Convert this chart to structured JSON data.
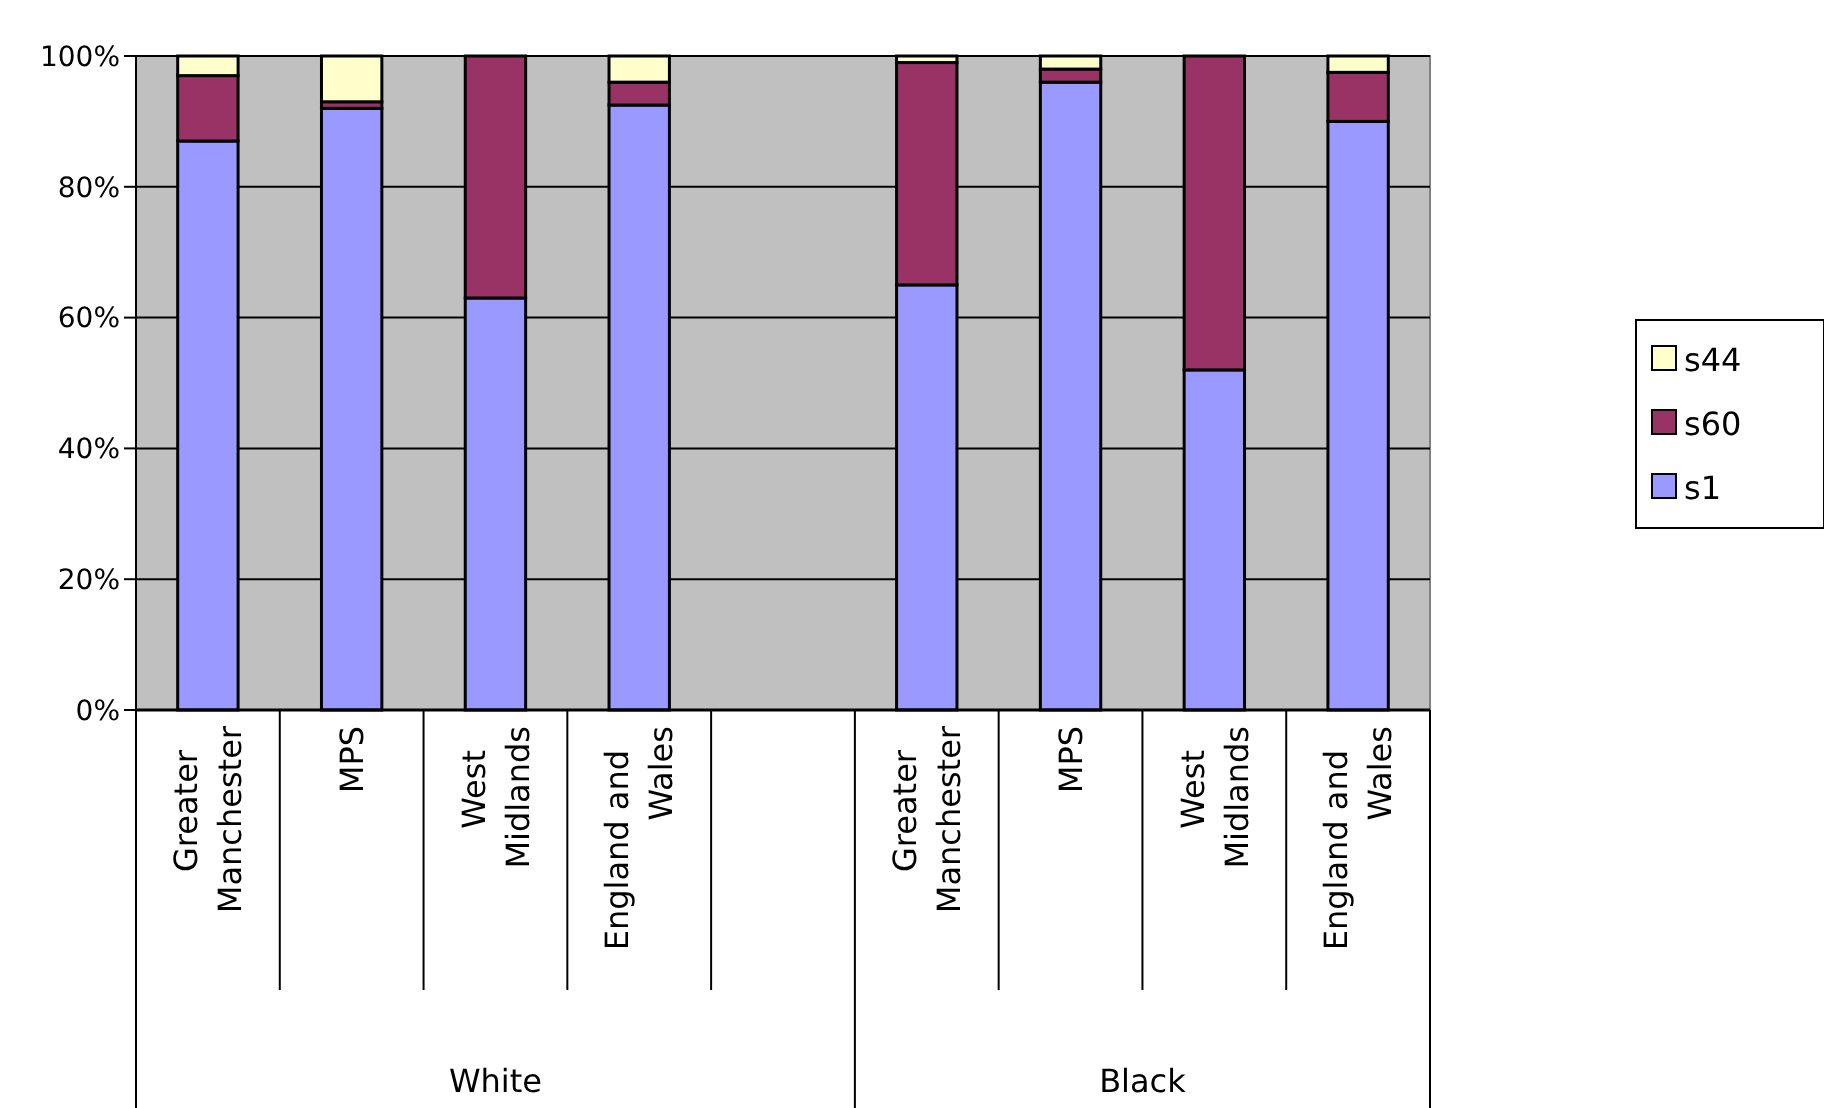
{
  "chart_data": {
    "type": "bar",
    "stacked": true,
    "categories": [
      "Greater Manchester",
      "MPS",
      "West Midlands",
      "England and Wales",
      null,
      "Greater Manchester",
      "MPS",
      "West Midlands",
      "England and Wales"
    ],
    "series": [
      {
        "name": "s1",
        "color": "#9999ff",
        "values": [
          87,
          92,
          63,
          92.5,
          null,
          65,
          96,
          52,
          90
        ]
      },
      {
        "name": "s60",
        "color": "#993366",
        "values": [
          10,
          1,
          37,
          3.5,
          null,
          34,
          2,
          48,
          7.5
        ]
      },
      {
        "name": "s44",
        "color": "#ffffcc",
        "values": [
          3,
          7,
          0,
          4,
          null,
          1,
          2,
          0,
          2.5
        ]
      }
    ],
    "ylim": [
      0,
      100
    ],
    "yticks": [
      {
        "value": 0,
        "label": "0%"
      },
      {
        "value": 20,
        "label": "20%"
      },
      {
        "value": 40,
        "label": "40%"
      },
      {
        "value": 60,
        "label": "60%"
      },
      {
        "value": 80,
        "label": "80%"
      },
      {
        "value": 100,
        "label": "100%"
      }
    ],
    "grid": "y",
    "legend": "right",
    "annotations": [
      "White",
      "Black"
    ]
  }
}
